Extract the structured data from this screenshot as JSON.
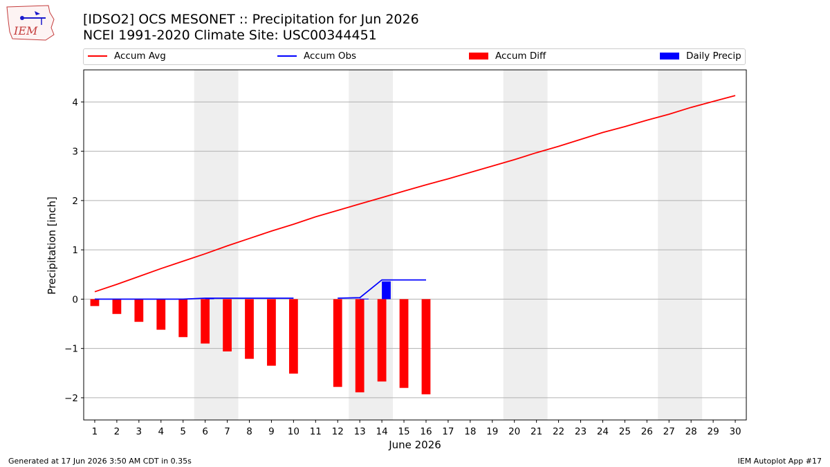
{
  "header": {
    "logo_text": "IEM",
    "title_line1": "[IDSO2] OCS MESONET :: Precipitation for Jun 2026",
    "title_line2": "NCEI 1991-2020 Climate Site: USC00344451"
  },
  "legend": {
    "position": "top",
    "items": [
      {
        "label": "Accum Avg",
        "kind": "line",
        "color": "#ff0000"
      },
      {
        "label": "Accum Obs",
        "kind": "line",
        "color": "#0000ff"
      },
      {
        "label": "Accum Diff",
        "kind": "bar",
        "color": "#ff0000"
      },
      {
        "label": "Daily Precip",
        "kind": "bar",
        "color": "#0000ff"
      }
    ]
  },
  "chart_data": {
    "type": "line",
    "xlabel": "June 2026",
    "ylabel": "Precipitation [inch]",
    "x": [
      1,
      2,
      3,
      4,
      5,
      6,
      7,
      8,
      9,
      10,
      11,
      12,
      13,
      14,
      15,
      16,
      17,
      18,
      19,
      20,
      21,
      22,
      23,
      24,
      25,
      26,
      27,
      28,
      29,
      30
    ],
    "xlim": [
      0.5,
      30.5
    ],
    "ylim": [
      -2.45,
      4.65
    ],
    "yticks": [
      -2,
      -1,
      0,
      1,
      2,
      3,
      4
    ],
    "grid": "horizontal",
    "weekend_shading": [
      [
        6,
        7
      ],
      [
        13,
        14
      ],
      [
        20,
        21
      ],
      [
        27,
        28
      ]
    ],
    "series": [
      {
        "name": "Accum Avg",
        "kind": "line",
        "color": "#ff0000",
        "values": [
          0.15,
          0.3,
          0.46,
          0.62,
          0.77,
          0.92,
          1.08,
          1.23,
          1.38,
          1.52,
          1.67,
          1.8,
          1.93,
          2.06,
          2.19,
          2.32,
          2.44,
          2.57,
          2.7,
          2.83,
          2.97,
          3.1,
          3.24,
          3.38,
          3.5,
          3.63,
          3.75,
          3.89,
          4.01,
          4.13
        ]
      },
      {
        "name": "Accum Obs",
        "kind": "line",
        "color": "#0000ff",
        "values": [
          0.0,
          0.0,
          0.0,
          0.0,
          0.0,
          0.02,
          0.02,
          0.02,
          0.02,
          0.02,
          null,
          0.02,
          0.03,
          0.39,
          0.39,
          0.39,
          null,
          null,
          null,
          null,
          null,
          null,
          null,
          null,
          null,
          null,
          null,
          null,
          null,
          null
        ]
      },
      {
        "name": "Accum Diff",
        "kind": "bar",
        "color": "#ff0000",
        "values": [
          -0.14,
          -0.3,
          -0.46,
          -0.62,
          -0.77,
          -0.9,
          -1.06,
          -1.21,
          -1.35,
          -1.51,
          null,
          -1.78,
          -1.89,
          -1.67,
          -1.8,
          -1.93,
          null,
          null,
          null,
          null,
          null,
          null,
          null,
          null,
          null,
          null,
          null,
          null,
          null,
          null
        ]
      },
      {
        "name": "Daily Precip",
        "kind": "bar",
        "color": "#0000ff",
        "values": [
          0,
          0,
          0,
          0,
          0,
          0.02,
          0,
          0,
          0,
          0,
          null,
          0,
          0.01,
          0.36,
          0,
          0,
          null,
          null,
          null,
          null,
          null,
          null,
          null,
          null,
          null,
          null,
          null,
          null,
          null,
          null
        ]
      }
    ]
  },
  "footer": {
    "left": "Generated at 17 Jun 2026 3:50 AM CDT in 0.35s",
    "right": "IEM Autoplot App #17"
  }
}
